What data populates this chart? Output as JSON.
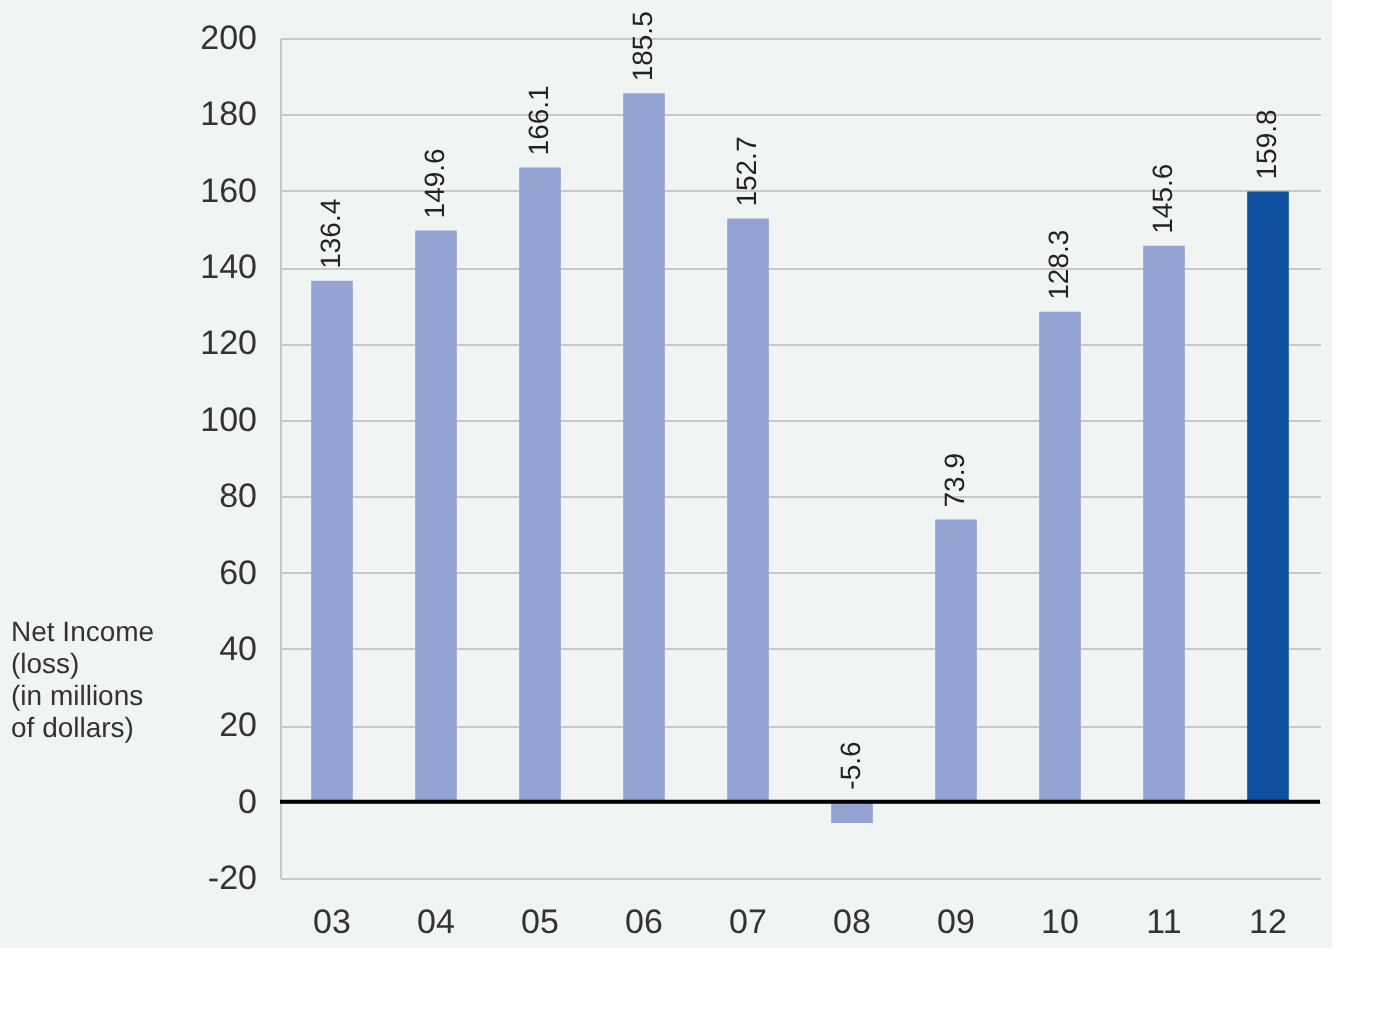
{
  "chart_data": {
    "type": "bar",
    "ylabel": "Net Income\n(loss)\n(in millions\nof dollars)",
    "categories": [
      "03",
      "04",
      "05",
      "06",
      "07",
      "08",
      "09",
      "10",
      "11",
      "12"
    ],
    "values": [
      136.4,
      149.6,
      166.1,
      185.5,
      152.7,
      -5.6,
      73.9,
      128.3,
      145.6,
      159.8
    ],
    "colors": [
      "#94a3d1",
      "#94a3d1",
      "#94a3d1",
      "#94a3d1",
      "#94a3d1",
      "#94a3d1",
      "#94a3d1",
      "#94a3d1",
      "#94a3d1",
      "#0d4f9c"
    ],
    "ylim": [
      -20,
      200
    ],
    "yticks": [
      -20,
      0,
      20,
      40,
      60,
      80,
      100,
      120,
      140,
      160,
      180,
      200
    ],
    "ref_lines": [
      {
        "axis": "y",
        "value": 0,
        "color": "#000000"
      }
    ],
    "grid": "y",
    "data_labels": true
  }
}
